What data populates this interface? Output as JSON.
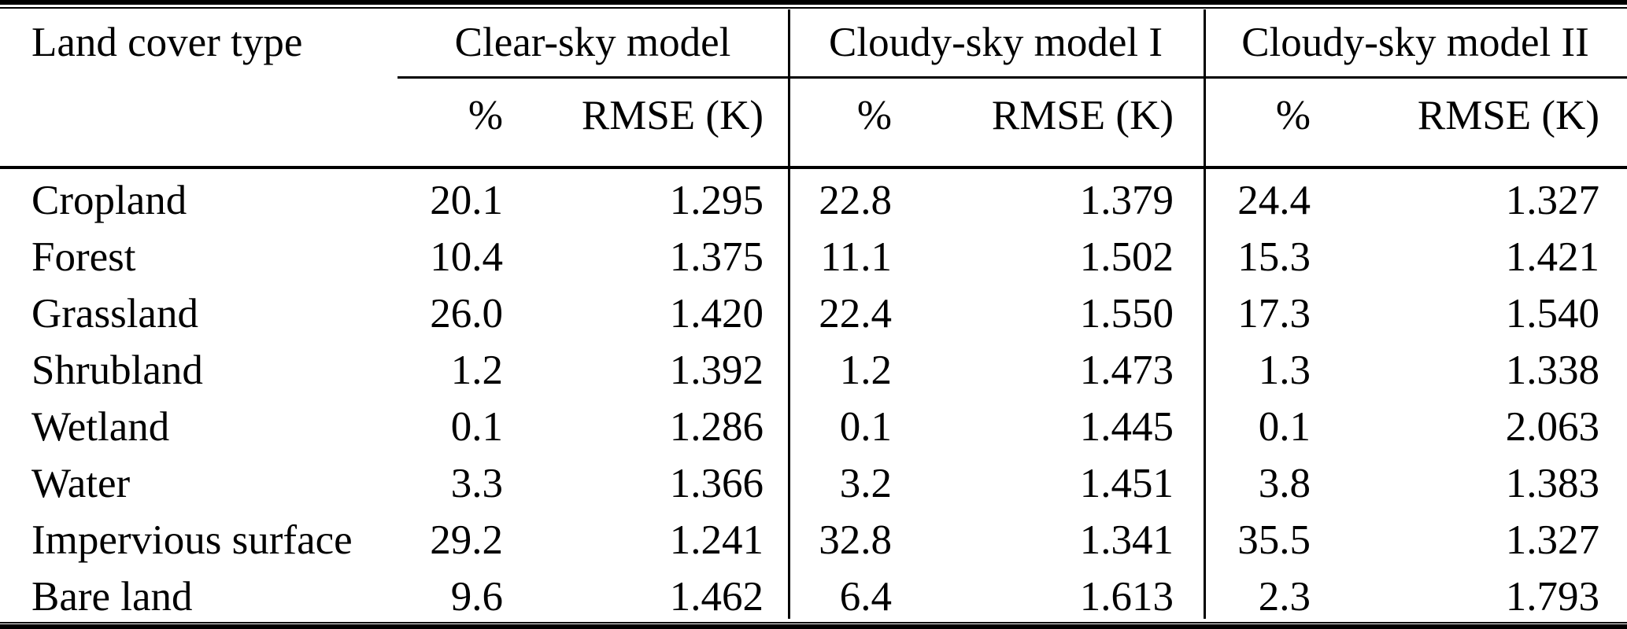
{
  "table": {
    "row_header": "Land cover type",
    "groups": [
      {
        "label": "Clear-sky model",
        "pct_header": "%",
        "rmse_header": "RMSE (K)"
      },
      {
        "label": "Cloudy-sky model I",
        "pct_header": "%",
        "rmse_header": "RMSE (K)"
      },
      {
        "label": "Cloudy-sky model II",
        "pct_header": "%",
        "rmse_header": "RMSE (K)"
      }
    ],
    "rows": [
      {
        "label": "Cropland",
        "values": [
          "20.1",
          "1.295",
          "22.8",
          "1.379",
          "24.4",
          "1.327"
        ]
      },
      {
        "label": "Forest",
        "values": [
          "10.4",
          "1.375",
          "11.1",
          "1.502",
          "15.3",
          "1.421"
        ]
      },
      {
        "label": "Grassland",
        "values": [
          "26.0",
          "1.420",
          "22.4",
          "1.550",
          "17.3",
          "1.540"
        ]
      },
      {
        "label": "Shrubland",
        "values": [
          "1.2",
          "1.392",
          "1.2",
          "1.473",
          "1.3",
          "1.338"
        ]
      },
      {
        "label": "Wetland",
        "values": [
          "0.1",
          "1.286",
          "0.1",
          "1.445",
          "0.1",
          "2.063"
        ]
      },
      {
        "label": "Water",
        "values": [
          "3.3",
          "1.366",
          "3.2",
          "1.451",
          "3.8",
          "1.383"
        ]
      },
      {
        "label": "Impervious surface",
        "values": [
          "29.2",
          "1.241",
          "32.8",
          "1.341",
          "35.5",
          "1.327"
        ]
      },
      {
        "label": "Bare land",
        "values": [
          "9.6",
          "1.462",
          "6.4",
          "1.613",
          "2.3",
          "1.793"
        ]
      }
    ],
    "colors": {
      "text": "#000000",
      "background": "#ffffff",
      "rules": "#000000"
    }
  }
}
